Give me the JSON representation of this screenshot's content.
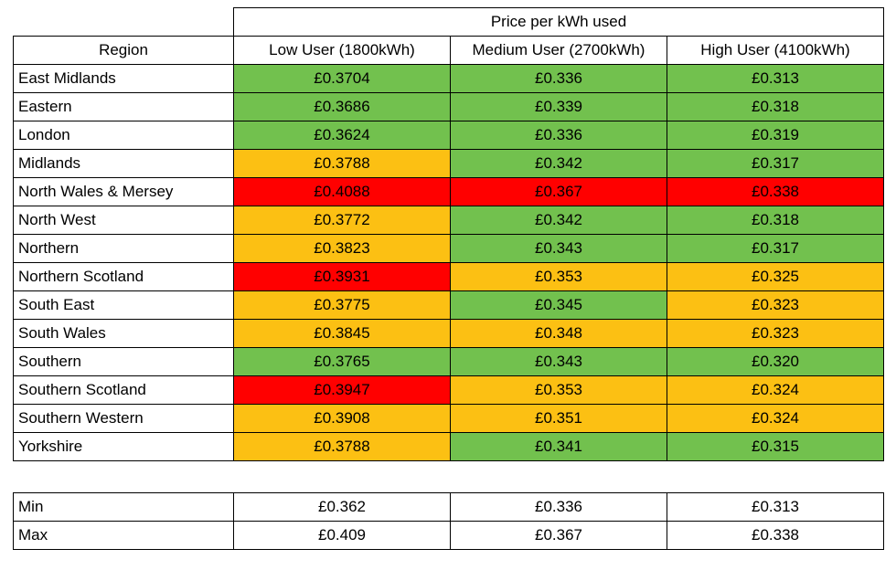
{
  "chart_data": {
    "type": "table",
    "title": "Price per kWh used",
    "columns": [
      "Region",
      "Low User (1800kWh)",
      "Medium User (2700kWh)",
      "High User (4100kWh)"
    ],
    "color_legend": {
      "green": "#72c14e",
      "amber": "#fcc013",
      "red": "#ff0000"
    },
    "rows": [
      {
        "region": "East Midlands",
        "low": {
          "value": "£0.3704",
          "color": "green"
        },
        "medium": {
          "value": "£0.336",
          "color": "green"
        },
        "high": {
          "value": "£0.313",
          "color": "green"
        }
      },
      {
        "region": "Eastern",
        "low": {
          "value": "£0.3686",
          "color": "green"
        },
        "medium": {
          "value": "£0.339",
          "color": "green"
        },
        "high": {
          "value": "£0.318",
          "color": "green"
        }
      },
      {
        "region": "London",
        "low": {
          "value": "£0.3624",
          "color": "green"
        },
        "medium": {
          "value": "£0.336",
          "color": "green"
        },
        "high": {
          "value": "£0.319",
          "color": "green"
        }
      },
      {
        "region": "Midlands",
        "low": {
          "value": "£0.3788",
          "color": "amber"
        },
        "medium": {
          "value": "£0.342",
          "color": "green"
        },
        "high": {
          "value": "£0.317",
          "color": "green"
        }
      },
      {
        "region": "North Wales & Mersey",
        "low": {
          "value": "£0.4088",
          "color": "red"
        },
        "medium": {
          "value": "£0.367",
          "color": "red"
        },
        "high": {
          "value": "£0.338",
          "color": "red"
        }
      },
      {
        "region": "North West",
        "low": {
          "value": "£0.3772",
          "color": "amber"
        },
        "medium": {
          "value": "£0.342",
          "color": "green"
        },
        "high": {
          "value": "£0.318",
          "color": "green"
        }
      },
      {
        "region": "Northern",
        "low": {
          "value": "£0.3823",
          "color": "amber"
        },
        "medium": {
          "value": "£0.343",
          "color": "green"
        },
        "high": {
          "value": "£0.317",
          "color": "green"
        }
      },
      {
        "region": "Northern Scotland",
        "low": {
          "value": "£0.3931",
          "color": "red"
        },
        "medium": {
          "value": "£0.353",
          "color": "amber"
        },
        "high": {
          "value": "£0.325",
          "color": "amber"
        }
      },
      {
        "region": "South East",
        "low": {
          "value": "£0.3775",
          "color": "amber"
        },
        "medium": {
          "value": "£0.345",
          "color": "green"
        },
        "high": {
          "value": "£0.323",
          "color": "amber"
        }
      },
      {
        "region": "South Wales",
        "low": {
          "value": "£0.3845",
          "color": "amber"
        },
        "medium": {
          "value": "£0.348",
          "color": "amber"
        },
        "high": {
          "value": "£0.323",
          "color": "amber"
        }
      },
      {
        "region": "Southern",
        "low": {
          "value": "£0.3765",
          "color": "green"
        },
        "medium": {
          "value": "£0.343",
          "color": "green"
        },
        "high": {
          "value": "£0.320",
          "color": "green"
        }
      },
      {
        "region": "Southern Scotland",
        "low": {
          "value": "£0.3947",
          "color": "red"
        },
        "medium": {
          "value": "£0.353",
          "color": "amber"
        },
        "high": {
          "value": "£0.324",
          "color": "amber"
        }
      },
      {
        "region": "Southern Western",
        "low": {
          "value": "£0.3908",
          "color": "amber"
        },
        "medium": {
          "value": "£0.351",
          "color": "amber"
        },
        "high": {
          "value": "£0.324",
          "color": "amber"
        }
      },
      {
        "region": "Yorkshire",
        "low": {
          "value": "£0.3788",
          "color": "amber"
        },
        "medium": {
          "value": "£0.341",
          "color": "green"
        },
        "high": {
          "value": "£0.315",
          "color": "green"
        }
      }
    ],
    "summary": {
      "min": {
        "label": "Min",
        "low": "£0.362",
        "medium": "£0.336",
        "high": "£0.313"
      },
      "max": {
        "label": "Max",
        "low": "£0.409",
        "medium": "£0.367",
        "high": "£0.338"
      }
    }
  }
}
